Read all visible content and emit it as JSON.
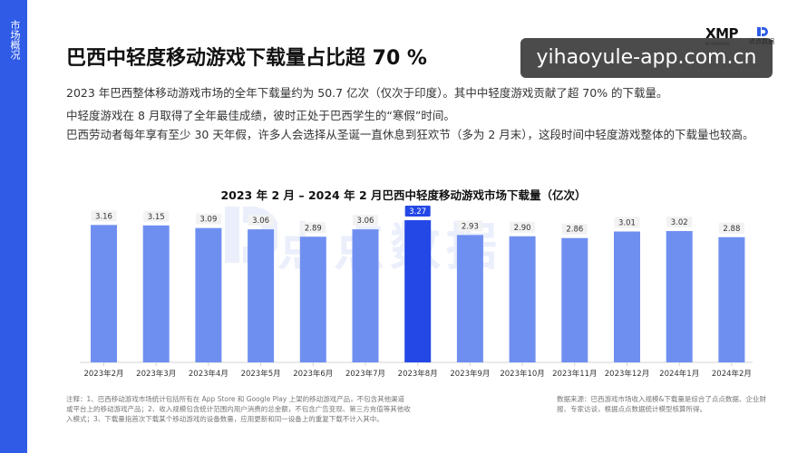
{
  "sidebar": {
    "label": "市场概况"
  },
  "brand": {
    "xmp": "XMP",
    "xmp_sub": "BY MOBVISTA",
    "diandian": "点点数据"
  },
  "watermark_url": "yihaoyule-app.com.cn",
  "title": "巴西中轻度移动游戏下载量占比超 70 %",
  "paragraphs": [
    "2023 年巴西整体移动游戏市场的全年下载量约为 50.7 亿次（仅次于印度）。其中中轻度游戏贡献了超 70% 的下载量。",
    "中轻度游戏在 8 月取得了全年最佳成绩，彼时正处于巴西学生的“寒假”时间。",
    "巴西劳动者每年享有至少 30 天年假，许多人会选择从圣诞一直休息到狂欢节（多为 2 月末），这段时间中轻度游戏整体的下载量也较高。"
  ],
  "chart_data": {
    "type": "bar",
    "title": "2023 年 2 月  –  2024 年 2 月巴西中轻度移动游戏市场下载量（亿次）",
    "categories": [
      "2023年2月",
      "2023年3月",
      "2023年4月",
      "2023年5月",
      "2023年6月",
      "2023年7月",
      "2023年8月",
      "2023年9月",
      "2023年10月",
      "2023年11月",
      "2023年12月",
      "2024年1月",
      "2024年2月"
    ],
    "values": [
      3.16,
      3.15,
      3.09,
      3.06,
      2.89,
      3.06,
      3.27,
      2.93,
      2.9,
      2.86,
      3.01,
      3.02,
      2.88
    ],
    "value_labels": [
      "3.16",
      "3.15",
      "3.09",
      "3.06",
      "2.89",
      "3.06",
      "3.27",
      "2.93",
      "2.90",
      "2.86",
      "3.01",
      "3.02",
      "2.88"
    ],
    "highlight_index": 6,
    "ylim": [
      0,
      3.5
    ],
    "grid": false,
    "colors": {
      "bar": "#6f8ff0",
      "highlight": "#2448e6",
      "highlight_label_bg": "#2448e6",
      "label_bg": "#f2f2f2"
    }
  },
  "chart_watermark": "点点数据",
  "footnote": "注释：1、巴西移动游戏市场统计包括所有在 App Store 和 Google Play 上架的移动游戏产品，不包含其他渠道或平台上的移动游戏产品；2、收入规模包含统计范围内用户消费的总金额，不包含广告变现、第三方充值等其他收入模式；3、下载量指首次下载某个移动游戏的设备数量，应用更新和同一设备上的重复下载不计入其中。",
  "source": "数据来源：巴西游戏市场收入规模&下载量是综合了点点数据、企业财报、专家访谈，根据点点数据统计模型核算所得。"
}
